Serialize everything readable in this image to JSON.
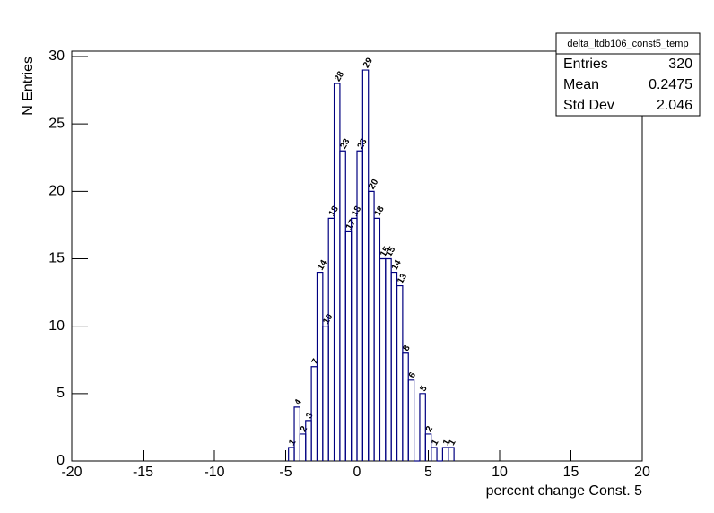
{
  "chart_data": {
    "type": "histogram",
    "xlabel": "percent change Const. 5",
    "ylabel": "N Entries",
    "bins": [
      -4.8,
      -4.4,
      -4.0,
      -3.6,
      -3.2,
      -2.8,
      -2.4,
      -2.0,
      -1.6,
      -1.2,
      -0.8,
      -0.4,
      0,
      0.4,
      0.8,
      1.2,
      1.6,
      2.0,
      2.4,
      2.8,
      3.2,
      3.6,
      4.0,
      4.4,
      4.8,
      5.2,
      5.6,
      6.0,
      6.4,
      6.8
    ],
    "values": [
      1,
      4,
      2,
      3,
      7,
      14,
      10,
      18,
      28,
      23,
      17,
      18,
      23,
      29,
      20,
      18,
      15,
      15,
      14,
      13,
      8,
      6,
      0,
      5,
      2,
      1,
      0,
      1,
      1
    ],
    "color": "#000080",
    "xlim": [
      -20,
      20
    ],
    "xticks": [
      -20,
      -15,
      -10,
      -5,
      0,
      5,
      10,
      15,
      20
    ],
    "ylim": [
      0,
      30.4
    ],
    "yticks": [
      0,
      5,
      10,
      15,
      20,
      25,
      30
    ],
    "stats": {
      "title": "delta_ltdb106_const5_temp",
      "rows": [
        {
          "label": "Entries",
          "value": 320
        },
        {
          "label": "Mean",
          "value": 0.2475
        },
        {
          "label": "Std Dev",
          "value": 2.046
        }
      ]
    }
  }
}
